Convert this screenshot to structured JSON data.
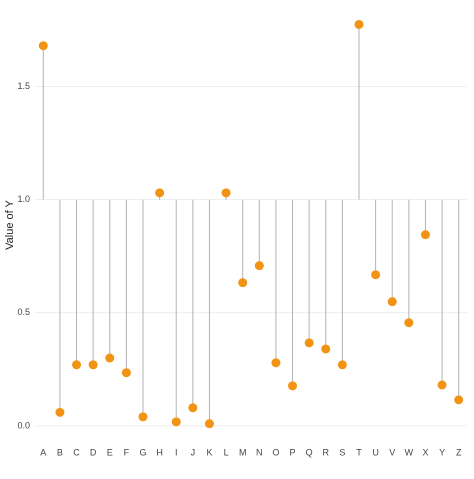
{
  "chart_data": {
    "type": "lollipop",
    "y_label": "Value of Y",
    "categories": [
      "A",
      "B",
      "C",
      "D",
      "E",
      "F",
      "G",
      "H",
      "I",
      "J",
      "K",
      "L",
      "M",
      "N",
      "O",
      "P",
      "Q",
      "R",
      "S",
      "T",
      "U",
      "V",
      "W",
      "X",
      "Y",
      "Z"
    ],
    "values": [
      1.68,
      0.06,
      0.27,
      0.27,
      0.3,
      0.235,
      0.04,
      1.03,
      0.018,
      0.08,
      0.01,
      1.03,
      0.633,
      0.708,
      0.279,
      0.177,
      0.367,
      0.34,
      0.27,
      1.774,
      0.668,
      0.549,
      0.456,
      0.845,
      0.181,
      0.115
    ],
    "baseline": 1,
    "color": "#f39313",
    "stem_color": "#b3b3b3",
    "ylim": [
      -0.08,
      1.86
    ],
    "yticks": [
      {
        "value": 0,
        "label": "0.0"
      },
      {
        "value": 0.5,
        "label": "0.5"
      },
      {
        "value": 1,
        "label": "1.0"
      },
      {
        "value": 1.5,
        "label": "1.5"
      }
    ],
    "grid": true
  }
}
